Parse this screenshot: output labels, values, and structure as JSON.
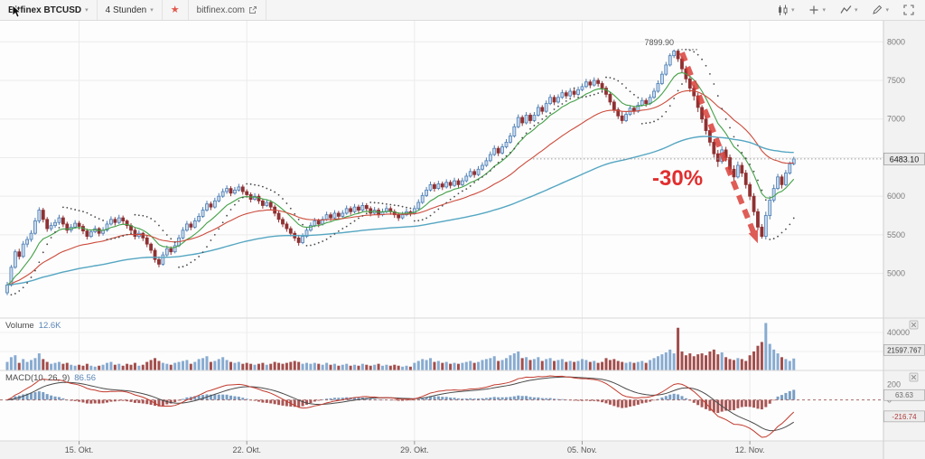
{
  "toolbar": {
    "symbol": "Bitfinex BTCUSD",
    "interval": "4 Stunden",
    "link": "bitfinex.com",
    "right_icons": [
      "chart-style",
      "compare",
      "indicators",
      "draw",
      "fullscreen"
    ]
  },
  "annotation": {
    "label": "-30%",
    "high_label": "7899.90",
    "arrow": {
      "from_index": 169,
      "from_price": 7860,
      "to_index": 188,
      "to_price": 5390
    }
  },
  "price_axis": {
    "levels": [
      8000,
      7500,
      7000,
      6500,
      6000,
      5500,
      5000
    ],
    "current": {
      "label": "6483.10",
      "value": 6483.1
    }
  },
  "volume_pane": {
    "label": "Volume",
    "value": "12.6K",
    "axis": [
      {
        "value": 40000,
        "label": "40000"
      },
      {
        "value": 20000,
        "label": ""
      }
    ],
    "tag": {
      "label": "21597.767",
      "value": 21597.767
    }
  },
  "macd_pane": {
    "label": "MACD(10, 26, 9)",
    "value": "86.56",
    "axis_labels": [
      {
        "value": 200,
        "label": "200"
      },
      {
        "value": 0,
        "label": "0"
      }
    ],
    "tags": [
      {
        "label": "63.63",
        "value": 63.63,
        "color": "#6b6b6b"
      },
      {
        "label": "-216.74",
        "value": -216.74,
        "color": "#b03a3a"
      }
    ]
  },
  "time_axis": {
    "ticks": [
      {
        "index": 18,
        "label": "15. Okt."
      },
      {
        "index": 60,
        "label": "22. Okt."
      },
      {
        "index": 102,
        "label": "29. Okt."
      },
      {
        "index": 144,
        "label": "05. Nov."
      },
      {
        "index": 186,
        "label": "12. Nov."
      }
    ]
  },
  "chart_data": {
    "type": "candlestick",
    "symbol": "BTCUSD",
    "exchange": "Bitfinex",
    "interval": "4h",
    "title": "Bitfinex BTCUSD 4 Stunden",
    "ylim": [
      4750,
      8050
    ],
    "grid": true,
    "colors": {
      "up": "#4d7db3",
      "up_fill": "#c9dbee",
      "down": "#8f3132",
      "volume_up": "#82a7cf",
      "volume_down": "#9d4442",
      "ma_fast": "#43a047",
      "ma_mid": "#cc4b3c",
      "ma_slow": "#55a6c2",
      "psar": "#4a4a4a",
      "macd_line": "#c23b2e",
      "signal_line": "#4a4a4a",
      "hist_pos": "#6b93bd",
      "hist_neg": "#a04543",
      "arrow": "#d93a33",
      "annotation_text": "#e12e2e"
    },
    "indicators": {
      "overlays": [
        {
          "type": "ema",
          "period": 10,
          "color": "#43a047"
        },
        {
          "type": "ema",
          "period": 30,
          "color": "#cc4b3c"
        },
        {
          "type": "ema",
          "period": 100,
          "color": "#55a6c2"
        },
        {
          "type": "psar",
          "color": "#4a4a4a"
        }
      ],
      "macd": {
        "fast": 10,
        "slow": 26,
        "signal": 9
      }
    },
    "candles": [
      [
        4750,
        4890,
        4720,
        4850
      ],
      [
        4850,
        5110,
        4830,
        5080
      ],
      [
        5080,
        5310,
        5060,
        5280
      ],
      [
        5280,
        5320,
        5180,
        5220
      ],
      [
        5220,
        5420,
        5200,
        5380
      ],
      [
        5380,
        5480,
        5340,
        5440
      ],
      [
        5440,
        5560,
        5410,
        5520
      ],
      [
        5520,
        5720,
        5500,
        5680
      ],
      [
        5680,
        5857,
        5650,
        5820
      ],
      [
        5820,
        5850,
        5660,
        5700
      ],
      [
        5700,
        5730,
        5540,
        5580
      ],
      [
        5580,
        5660,
        5550,
        5620
      ],
      [
        5620,
        5700,
        5590,
        5660
      ],
      [
        5660,
        5760,
        5630,
        5720
      ],
      [
        5720,
        5750,
        5600,
        5640
      ],
      [
        5640,
        5670,
        5520,
        5560
      ],
      [
        5560,
        5640,
        5530,
        5600
      ],
      [
        5600,
        5690,
        5580,
        5650
      ],
      [
        5650,
        5680,
        5570,
        5610
      ],
      [
        5610,
        5640,
        5510,
        5550
      ],
      [
        5550,
        5580,
        5440,
        5480
      ],
      [
        5480,
        5570,
        5460,
        5540
      ],
      [
        5540,
        5620,
        5520,
        5580
      ],
      [
        5580,
        5600,
        5480,
        5520
      ],
      [
        5520,
        5600,
        5490,
        5560
      ],
      [
        5560,
        5680,
        5540,
        5640
      ],
      [
        5640,
        5740,
        5620,
        5700
      ],
      [
        5700,
        5730,
        5620,
        5660
      ],
      [
        5660,
        5760,
        5640,
        5720
      ],
      [
        5720,
        5750,
        5640,
        5680
      ],
      [
        5680,
        5700,
        5580,
        5620
      ],
      [
        5620,
        5650,
        5520,
        5560
      ],
      [
        5560,
        5590,
        5440,
        5480
      ],
      [
        5480,
        5560,
        5450,
        5520
      ],
      [
        5520,
        5540,
        5420,
        5460
      ],
      [
        5460,
        5490,
        5340,
        5380
      ],
      [
        5380,
        5400,
        5260,
        5300
      ],
      [
        5300,
        5330,
        5140,
        5180
      ],
      [
        5180,
        5220,
        5080,
        5120
      ],
      [
        5120,
        5280,
        5100,
        5240
      ],
      [
        5240,
        5360,
        5220,
        5320
      ],
      [
        5320,
        5350,
        5240,
        5280
      ],
      [
        5280,
        5400,
        5260,
        5360
      ],
      [
        5360,
        5500,
        5340,
        5460
      ],
      [
        5460,
        5600,
        5440,
        5560
      ],
      [
        5560,
        5680,
        5540,
        5640
      ],
      [
        5640,
        5670,
        5560,
        5600
      ],
      [
        5600,
        5720,
        5580,
        5680
      ],
      [
        5680,
        5780,
        5660,
        5740
      ],
      [
        5740,
        5860,
        5720,
        5820
      ],
      [
        5820,
        5940,
        5800,
        5900
      ],
      [
        5900,
        5930,
        5820,
        5860
      ],
      [
        5860,
        5980,
        5840,
        5940
      ],
      [
        5940,
        6040,
        5920,
        6000
      ],
      [
        6000,
        6100,
        5980,
        6060
      ],
      [
        6060,
        6140,
        6030,
        6100
      ],
      [
        6100,
        6130,
        6000,
        6040
      ],
      [
        6040,
        6120,
        6020,
        6080
      ],
      [
        6080,
        6160,
        6060,
        6120
      ],
      [
        6120,
        6150,
        6020,
        6060
      ],
      [
        6060,
        6090,
        5980,
        6020
      ],
      [
        6020,
        6050,
        5920,
        5960
      ],
      [
        5960,
        6040,
        5940,
        6000
      ],
      [
        6000,
        6030,
        5900,
        5940
      ],
      [
        5940,
        5970,
        5840,
        5880
      ],
      [
        5880,
        5960,
        5860,
        5920
      ],
      [
        5920,
        5950,
        5820,
        5860
      ],
      [
        5860,
        5890,
        5740,
        5780
      ],
      [
        5780,
        5810,
        5660,
        5700
      ],
      [
        5700,
        5730,
        5600,
        5640
      ],
      [
        5640,
        5670,
        5540,
        5580
      ],
      [
        5580,
        5610,
        5480,
        5520
      ],
      [
        5520,
        5550,
        5420,
        5460
      ],
      [
        5460,
        5500,
        5360,
        5400
      ],
      [
        5400,
        5520,
        5380,
        5480
      ],
      [
        5480,
        5600,
        5460,
        5560
      ],
      [
        5560,
        5660,
        5540,
        5620
      ],
      [
        5620,
        5720,
        5600,
        5680
      ],
      [
        5680,
        5710,
        5600,
        5640
      ],
      [
        5640,
        5740,
        5620,
        5700
      ],
      [
        5700,
        5800,
        5680,
        5760
      ],
      [
        5760,
        5790,
        5680,
        5720
      ],
      [
        5720,
        5820,
        5700,
        5780
      ],
      [
        5780,
        5810,
        5700,
        5740
      ],
      [
        5740,
        5820,
        5720,
        5780
      ],
      [
        5780,
        5880,
        5760,
        5840
      ],
      [
        5840,
        5870,
        5760,
        5800
      ],
      [
        5800,
        5900,
        5780,
        5860
      ],
      [
        5860,
        5890,
        5780,
        5820
      ],
      [
        5820,
        5920,
        5800,
        5880
      ],
      [
        5880,
        5910,
        5800,
        5840
      ],
      [
        5840,
        5870,
        5740,
        5780
      ],
      [
        5780,
        5860,
        5760,
        5820
      ],
      [
        5820,
        5850,
        5720,
        5760
      ],
      [
        5760,
        5840,
        5740,
        5800
      ],
      [
        5800,
        5880,
        5780,
        5840
      ],
      [
        5840,
        5870,
        5760,
        5800
      ],
      [
        5800,
        5830,
        5720,
        5760
      ],
      [
        5760,
        5790,
        5680,
        5720
      ],
      [
        5720,
        5800,
        5700,
        5760
      ],
      [
        5760,
        5840,
        5740,
        5800
      ],
      [
        5800,
        5820,
        5740,
        5780
      ],
      [
        5780,
        5880,
        5760,
        5840
      ],
      [
        5840,
        5960,
        5820,
        5920
      ],
      [
        5920,
        6050,
        5900,
        6010
      ],
      [
        6010,
        6120,
        5990,
        6080
      ],
      [
        6080,
        6190,
        6060,
        6150
      ],
      [
        6150,
        6180,
        6060,
        6100
      ],
      [
        6100,
        6200,
        6080,
        6160
      ],
      [
        6160,
        6190,
        6080,
        6120
      ],
      [
        6120,
        6220,
        6100,
        6180
      ],
      [
        6180,
        6210,
        6100,
        6140
      ],
      [
        6140,
        6240,
        6120,
        6200
      ],
      [
        6200,
        6230,
        6110,
        6150
      ],
      [
        6150,
        6240,
        6130,
        6200
      ],
      [
        6200,
        6300,
        6180,
        6260
      ],
      [
        6260,
        6360,
        6240,
        6320
      ],
      [
        6320,
        6350,
        6240,
        6280
      ],
      [
        6280,
        6390,
        6260,
        6350
      ],
      [
        6350,
        6440,
        6330,
        6400
      ],
      [
        6400,
        6500,
        6380,
        6460
      ],
      [
        6460,
        6580,
        6440,
        6540
      ],
      [
        6540,
        6660,
        6520,
        6620
      ],
      [
        6620,
        6650,
        6520,
        6560
      ],
      [
        6560,
        6680,
        6540,
        6640
      ],
      [
        6640,
        6740,
        6620,
        6700
      ],
      [
        6700,
        6820,
        6680,
        6780
      ],
      [
        6780,
        6940,
        6760,
        6900
      ],
      [
        6900,
        7060,
        6880,
        7020
      ],
      [
        7020,
        7050,
        6910,
        6950
      ],
      [
        6950,
        7090,
        6930,
        7050
      ],
      [
        7050,
        7080,
        6940,
        6980
      ],
      [
        6980,
        7090,
        6960,
        7050
      ],
      [
        7050,
        7190,
        7030,
        7150
      ],
      [
        7150,
        7180,
        7060,
        7100
      ],
      [
        7100,
        7240,
        7080,
        7200
      ],
      [
        7200,
        7320,
        7180,
        7280
      ],
      [
        7280,
        7310,
        7180,
        7220
      ],
      [
        7220,
        7320,
        7200,
        7280
      ],
      [
        7280,
        7380,
        7260,
        7340
      ],
      [
        7340,
        7370,
        7260,
        7300
      ],
      [
        7300,
        7400,
        7280,
        7360
      ],
      [
        7360,
        7390,
        7280,
        7320
      ],
      [
        7320,
        7420,
        7300,
        7380
      ],
      [
        7380,
        7460,
        7360,
        7420
      ],
      [
        7420,
        7520,
        7400,
        7480
      ],
      [
        7480,
        7510,
        7400,
        7440
      ],
      [
        7440,
        7540,
        7420,
        7500
      ],
      [
        7500,
        7530,
        7420,
        7460
      ],
      [
        7460,
        7490,
        7360,
        7400
      ],
      [
        7400,
        7430,
        7280,
        7320
      ],
      [
        7320,
        7350,
        7180,
        7220
      ],
      [
        7220,
        7250,
        7080,
        7120
      ],
      [
        7120,
        7150,
        7000,
        7040
      ],
      [
        7040,
        7100,
        6940,
        6980
      ],
      [
        6980,
        7100,
        6960,
        7060
      ],
      [
        7060,
        7180,
        7040,
        7140
      ],
      [
        7140,
        7170,
        7060,
        7100
      ],
      [
        7100,
        7220,
        7080,
        7180
      ],
      [
        7180,
        7280,
        7160,
        7240
      ],
      [
        7240,
        7270,
        7160,
        7200
      ],
      [
        7200,
        7320,
        7180,
        7280
      ],
      [
        7280,
        7400,
        7260,
        7360
      ],
      [
        7360,
        7500,
        7340,
        7460
      ],
      [
        7460,
        7620,
        7440,
        7580
      ],
      [
        7580,
        7740,
        7560,
        7700
      ],
      [
        7700,
        7850,
        7680,
        7820
      ],
      [
        7820,
        7899.9,
        7790,
        7880
      ],
      [
        7880,
        7895,
        7740,
        7780
      ],
      [
        7780,
        7810,
        7600,
        7650
      ],
      [
        7650,
        7690,
        7470,
        7520
      ],
      [
        7520,
        7560,
        7350,
        7400
      ],
      [
        7400,
        7440,
        7240,
        7300
      ],
      [
        7300,
        7340,
        7090,
        7150
      ],
      [
        7150,
        7180,
        6950,
        7000
      ],
      [
        7000,
        7040,
        6800,
        6850
      ],
      [
        6850,
        6890,
        6650,
        6700
      ],
      [
        6700,
        6740,
        6500,
        6550
      ],
      [
        6550,
        6600,
        6380,
        6450
      ],
      [
        6450,
        6650,
        6420,
        6600
      ],
      [
        6600,
        6640,
        6450,
        6500
      ],
      [
        6500,
        6540,
        6300,
        6350
      ],
      [
        6350,
        6400,
        6200,
        6250
      ],
      [
        6250,
        6450,
        6230,
        6400
      ],
      [
        6400,
        6440,
        6250,
        6300
      ],
      [
        6300,
        6340,
        6100,
        6150
      ],
      [
        6150,
        6180,
        5950,
        6000
      ],
      [
        6000,
        6040,
        5750,
        5800
      ],
      [
        5800,
        5840,
        5560,
        5600
      ],
      [
        5600,
        5640,
        5450,
        5480
      ],
      [
        5480,
        5800,
        5440,
        5750
      ],
      [
        5750,
        6000,
        5700,
        5950
      ],
      [
        5950,
        6150,
        5920,
        6100
      ],
      [
        6100,
        6290,
        6080,
        6250
      ],
      [
        6250,
        6280,
        6100,
        6150
      ],
      [
        6150,
        6340,
        6130,
        6300
      ],
      [
        6300,
        6450,
        6280,
        6420
      ],
      [
        6420,
        6510,
        6400,
        6483.1
      ]
    ],
    "volumes": [
      9000,
      14000,
      16000,
      8000,
      12000,
      9000,
      11000,
      13000,
      18000,
      12000,
      9000,
      7000,
      8000,
      9000,
      7000,
      8000,
      6000,
      5000,
      6000,
      5000,
      7000,
      5000,
      4000,
      5000,
      6000,
      8000,
      9000,
      6000,
      7000,
      5000,
      7000,
      6000,
      8000,
      5000,
      6000,
      9000,
      11000,
      13000,
      10000,
      8000,
      7000,
      6000,
      8000,
      9000,
      10000,
      11000,
      7000,
      9000,
      12000,
      13000,
      15000,
      9000,
      10000,
      12000,
      14000,
      11000,
      9000,
      8000,
      9000,
      7000,
      8000,
      7000,
      6000,
      7000,
      8000,
      6000,
      7000,
      9000,
      8000,
      7000,
      8000,
      9000,
      10000,
      9000,
      7000,
      8000,
      7000,
      8000,
      7000,
      6000,
      8000,
      6000,
      7000,
      5000,
      6000,
      7000,
      5000,
      6000,
      5000,
      7000,
      6000,
      5000,
      6000,
      7000,
      5000,
      6000,
      5000,
      6000,
      5000,
      4000,
      5000,
      4000,
      8000,
      10000,
      12000,
      11000,
      13000,
      9000,
      10000,
      8000,
      9000,
      7000,
      8000,
      7000,
      8000,
      9000,
      10000,
      8000,
      9000,
      11000,
      12000,
      13000,
      15000,
      10000,
      11000,
      13000,
      16000,
      18000,
      20000,
      13000,
      14000,
      11000,
      12000,
      14000,
      10000,
      12000,
      13000,
      10000,
      11000,
      12000,
      9000,
      10000,
      9000,
      10000,
      12000,
      11000,
      9000,
      10000,
      8000,
      9000,
      13000,
      11000,
      12000,
      10000,
      9000,
      8000,
      9000,
      8000,
      9000,
      10000,
      8000,
      11000,
      13000,
      15000,
      17000,
      19000,
      22000,
      18000,
      45000,
      20000,
      16000,
      18000,
      15000,
      17000,
      18000,
      16000,
      20000,
      22000,
      17000,
      19000,
      14000,
      12000,
      11000,
      13000,
      12000,
      10000,
      16000,
      20000,
      26000,
      30000,
      50000,
      28000,
      22000,
      18000,
      14000,
      12000,
      10000,
      12600
    ]
  }
}
